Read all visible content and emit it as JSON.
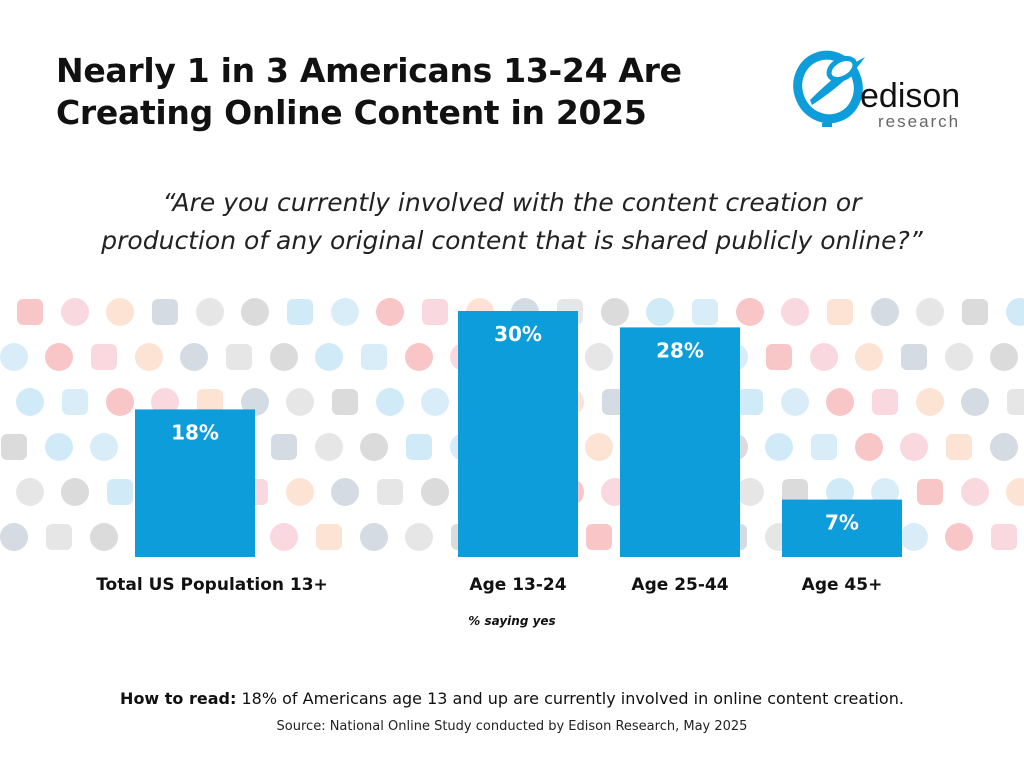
{
  "header": {
    "title_line1": "Nearly 1 in 3 Americans 13-24 Are",
    "title_line2": "Creating Online Content in 2025",
    "logo_text": "edison research"
  },
  "question_line1": "“Are you currently involved with the content creation or",
  "question_line2": "production of any original content that is shared publicly online?”",
  "chart_data": {
    "type": "bar",
    "title": "Nearly 1 in 3 Americans 13-24 Are Creating Online Content in 2025",
    "categories": [
      "Total US Population 13+",
      "Age 13-24",
      "Age 25-44",
      "Age 45+"
    ],
    "values": [
      18,
      30,
      28,
      7
    ],
    "data_labels": [
      "18%",
      "30%",
      "28%",
      "7%"
    ],
    "unit": "%",
    "xlabel": "",
    "ylabel": "",
    "ylim": [
      0,
      30
    ],
    "grid": false,
    "axis_note": "% saying yes",
    "bar_color": "#0d9ddb",
    "background": "faint social media / creator app icon pattern"
  },
  "footer": {
    "howto_label": "How to read:",
    "howto_text": " 18% of Americans age 13 and up are currently involved in online content creation.",
    "source": "Source: National Online Study conducted by Edison Research, May 2025"
  },
  "colors": {
    "accent": "#0d9ddb",
    "logo_blue": "#0d9ddb"
  }
}
